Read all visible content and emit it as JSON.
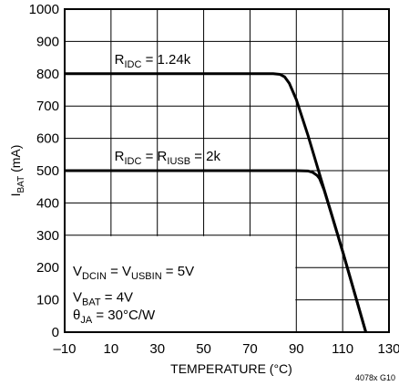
{
  "chart_data": {
    "type": "line",
    "xlabel": "TEMPERATURE (°C)",
    "ylabel": "IBAT (mA)",
    "ylabel_parts": [
      {
        "text": "I",
        "sub": false
      },
      {
        "text": "BAT",
        "sub": true
      },
      {
        "text": " (mA)",
        "sub": false
      }
    ],
    "xlim": [
      -10,
      130
    ],
    "ylim": [
      0,
      1000
    ],
    "x_ticks": [
      -10,
      10,
      30,
      50,
      70,
      90,
      110,
      130
    ],
    "x_tick_labels": [
      "–10",
      "10",
      "30",
      "50",
      "70",
      "90",
      "110",
      "130"
    ],
    "y_ticks": [
      0,
      100,
      200,
      300,
      400,
      500,
      600,
      700,
      800,
      900,
      1000
    ],
    "y_tick_labels": [
      "0",
      "100",
      "200",
      "300",
      "400",
      "500",
      "600",
      "700",
      "800",
      "900",
      "1000"
    ],
    "grid": true,
    "series": [
      {
        "label_parts": [
          {
            "text": "R",
            "sub": false
          },
          {
            "text": "IDC",
            "sub": true
          },
          {
            "text": " = 1.24k",
            "sub": false
          }
        ],
        "x": [
          -10,
          70,
          80,
          83,
          85,
          87,
          90,
          95,
          100,
          105,
          110,
          115,
          120
        ],
        "y": [
          800,
          800,
          800,
          798,
          790,
          770,
          720,
          610,
          490,
          370,
          250,
          125,
          0
        ]
      },
      {
        "label_parts": [
          {
            "text": "R",
            "sub": false
          },
          {
            "text": "IDC",
            "sub": true
          },
          {
            "text": " = R",
            "sub": false
          },
          {
            "text": "IUSB",
            "sub": true
          },
          {
            "text": " = 2k",
            "sub": false
          }
        ],
        "x": [
          -10,
          70,
          90,
          95,
          97,
          99,
          100,
          102,
          105,
          110,
          115,
          120
        ],
        "y": [
          500,
          500,
          500,
          499,
          495,
          485,
          476,
          440,
          370,
          250,
          125,
          0
        ]
      }
    ],
    "annotations": [
      [
        {
          "text": "V",
          "sub": false
        },
        {
          "text": "DCIN",
          "sub": true
        },
        {
          "text": " = V",
          "sub": false
        },
        {
          "text": "USBIN",
          "sub": true
        },
        {
          "text": " = 5V",
          "sub": false
        }
      ],
      [
        {
          "text": "V",
          "sub": false
        },
        {
          "text": "BAT",
          "sub": true
        },
        {
          "text": " = 4V",
          "sub": false
        }
      ],
      [
        {
          "text": "θ",
          "sub": false
        },
        {
          "text": "JA",
          "sub": true
        },
        {
          "text": " = 30°C/W",
          "sub": false
        }
      ]
    ],
    "figure_code": "4078x G10"
  }
}
